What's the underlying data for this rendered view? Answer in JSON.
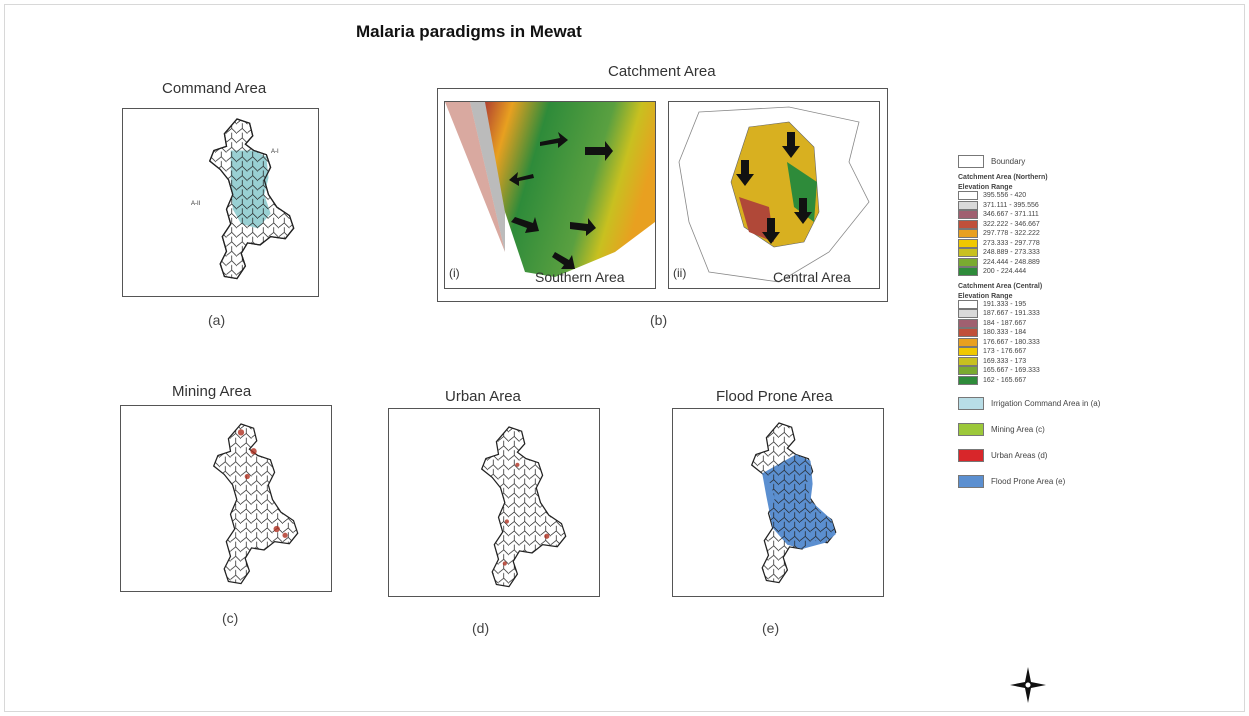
{
  "title": "Malaria paradigms in Mewat",
  "panels": {
    "a": {
      "title": "Command Area",
      "caption": "(a)",
      "labels": [
        "A-I",
        "A-II"
      ]
    },
    "b": {
      "title": "Catchment Area",
      "caption": "(b)",
      "sub": [
        {
          "tag": "(i)",
          "name": "Southern Area"
        },
        {
          "tag": "(ii)",
          "name": "Central Area"
        }
      ]
    },
    "c": {
      "title": "Mining Area",
      "caption": "(c)"
    },
    "d": {
      "title": "Urban Area",
      "caption": "(d)"
    },
    "e": {
      "title": "Flood Prone Area",
      "caption": "(e)"
    }
  },
  "legend": {
    "boundary": "Boundary",
    "groups": [
      {
        "title": "Catchment Area (Northern)",
        "subtitle": "Elevation Range",
        "items": [
          {
            "label": "395.556 - 420",
            "color": "#ffffff"
          },
          {
            "label": "371.111 - 395.556",
            "color": "#d9d9d9"
          },
          {
            "label": "346.667 - 371.111",
            "color": "#a06070"
          },
          {
            "label": "322.222 - 346.667",
            "color": "#c0503a"
          },
          {
            "label": "297.778 - 322.222",
            "color": "#e8a020"
          },
          {
            "label": "273.333 - 297.778",
            "color": "#f0c800"
          },
          {
            "label": "248.889 - 273.333",
            "color": "#c8c020"
          },
          {
            "label": "224.444 - 248.889",
            "color": "#7aaa30"
          },
          {
            "label": "200 - 224.444",
            "color": "#2e8b3a"
          }
        ]
      },
      {
        "title": "Catchment Area (Central)",
        "subtitle": "Elevation Range",
        "items": [
          {
            "label": "191.333 - 195",
            "color": "#ffffff"
          },
          {
            "label": "187.667 - 191.333",
            "color": "#d9d9d9"
          },
          {
            "label": "184 - 187.667",
            "color": "#a06070"
          },
          {
            "label": "180.333 - 184",
            "color": "#c0503a"
          },
          {
            "label": "176.667 - 180.333",
            "color": "#e8a020"
          },
          {
            "label": "173 - 176.667",
            "color": "#f0c800"
          },
          {
            "label": "169.333 - 173",
            "color": "#c8c020"
          },
          {
            "label": "165.667 - 169.333",
            "color": "#7aaa30"
          },
          {
            "label": "162 - 165.667",
            "color": "#2e8b3a"
          }
        ]
      }
    ],
    "areas": [
      {
        "label": "Irrigation Command Area in (a)",
        "color": "#b8dde6"
      },
      {
        "label": "Mining Area (c)",
        "color": "#9cc83a"
      },
      {
        "label": "Urban Areas (d)",
        "color": "#d8262a"
      },
      {
        "label": "Flood Prone Area (e)",
        "color": "#5b8fd0"
      }
    ]
  }
}
